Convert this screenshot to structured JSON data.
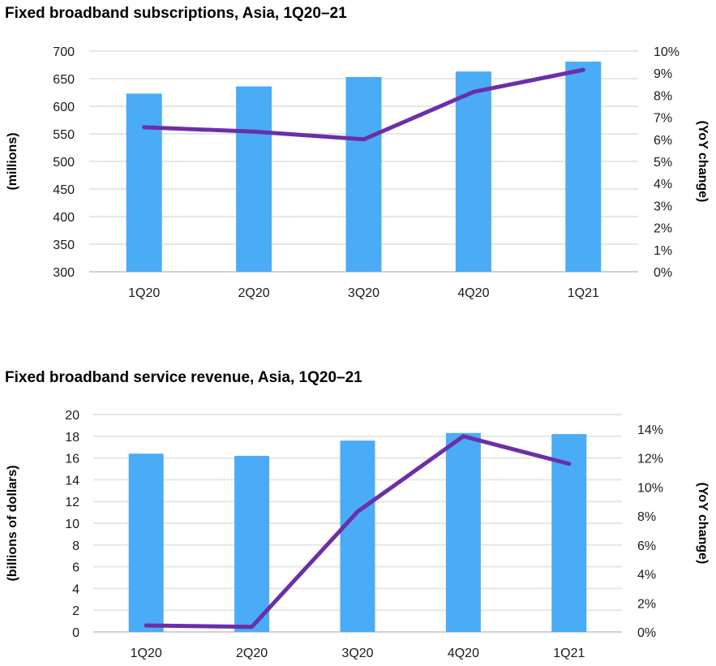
{
  "chart_data": [
    {
      "type": "bar",
      "combo": "bar+line (dual axis)",
      "title": "Fixed broadband subscriptions, Asia, 1Q20–21",
      "categories": [
        "1Q20",
        "2Q20",
        "3Q20",
        "4Q20",
        "1Q21"
      ],
      "series": [
        {
          "name": "Subscriptions",
          "type": "bar",
          "axis": "left",
          "color": "#4AABF7",
          "values": [
            623,
            636,
            653,
            663,
            681
          ]
        },
        {
          "name": "YoY change",
          "type": "line",
          "axis": "right",
          "color": "#6B2FA8",
          "values": [
            6.55,
            6.35,
            6.0,
            8.15,
            9.15
          ]
        }
      ],
      "ylabel": "(millions)",
      "ylim": [
        300,
        700
      ],
      "yticks": [
        "300",
        "350",
        "400",
        "450",
        "500",
        "550",
        "600",
        "650",
        "700"
      ],
      "y2label": "(YoY change)",
      "y2lim": [
        0,
        10
      ],
      "y2ticks": [
        "0%",
        "1%",
        "2%",
        "3%",
        "4%",
        "5%",
        "6%",
        "7%",
        "8%",
        "9%",
        "10%"
      ],
      "grid": true,
      "legend": "none"
    },
    {
      "type": "bar",
      "combo": "bar+line (dual axis)",
      "title": "Fixed broadband service revenue, Asia, 1Q20–21",
      "categories": [
        "1Q20",
        "2Q20",
        "3Q20",
        "4Q20",
        "1Q21"
      ],
      "series": [
        {
          "name": "Service revenue",
          "type": "bar",
          "axis": "left",
          "color": "#4AABF7",
          "values": [
            16.4,
            16.2,
            17.6,
            18.3,
            18.2
          ]
        },
        {
          "name": "YoY change",
          "type": "line",
          "axis": "right",
          "color": "#6B2FA8",
          "values": [
            0.45,
            0.35,
            8.3,
            13.5,
            11.6
          ]
        }
      ],
      "ylabel": "(billions of dollars)",
      "ylim": [
        0,
        20
      ],
      "yticks": [
        "0",
        "2",
        "4",
        "6",
        "8",
        "10",
        "12",
        "14",
        "16",
        "18",
        "20"
      ],
      "y2label": "(YoY change)",
      "y2lim": [
        0,
        15
      ],
      "y2ticks": [
        "0%",
        "2%",
        "4%",
        "6%",
        "8%",
        "10%",
        "12%",
        "14%"
      ],
      "grid": true,
      "legend": "none"
    }
  ]
}
